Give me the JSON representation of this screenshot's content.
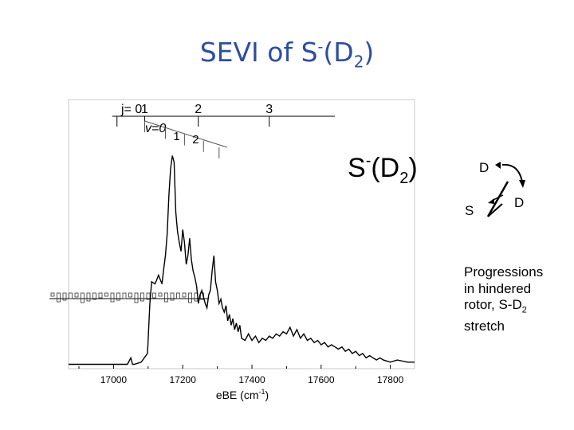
{
  "slide": {
    "title_main": "SEVI of S",
    "title_sup": "-",
    "title_paren_open": "(D",
    "title_sub": "2",
    "title_paren_close": ")"
  },
  "chart_data": {
    "type": "line",
    "title": "",
    "xlabel": "eBE (cm⁻¹)",
    "ylabel": "",
    "xlim": [
      16870,
      17870
    ],
    "ylim": [
      0,
      1.0
    ],
    "x_ticks": [
      17000,
      17200,
      17400,
      17600,
      17800
    ],
    "inset_label": "S⁻(D₂)",
    "series": [
      {
        "x": [
          16870,
          16950,
          17000,
          17040,
          17050,
          17055,
          17060,
          17080,
          17098,
          17105,
          17110,
          17120,
          17125,
          17130,
          17140,
          17145,
          17150,
          17155,
          17160,
          17165,
          17170,
          17175,
          17180,
          17185,
          17190,
          17195,
          17200,
          17205,
          17210,
          17215,
          17220,
          17225,
          17230,
          17235,
          17240,
          17245,
          17250,
          17255,
          17260,
          17265,
          17270,
          17275,
          17280,
          17285,
          17290,
          17295,
          17300,
          17305,
          17310,
          17315,
          17320,
          17325,
          17330,
          17335,
          17340,
          17345,
          17350,
          17355,
          17360,
          17365,
          17370,
          17380,
          17390,
          17400,
          17410,
          17420,
          17430,
          17440,
          17450,
          17460,
          17470,
          17480,
          17490,
          17500,
          17510,
          17520,
          17530,
          17540,
          17550,
          17560,
          17570,
          17580,
          17590,
          17600,
          17610,
          17620,
          17630,
          17640,
          17650,
          17660,
          17670,
          17680,
          17690,
          17700,
          17710,
          17720,
          17730,
          17740,
          17750,
          17760,
          17770,
          17780,
          17800,
          17820,
          17850,
          17870
        ],
        "y": [
          0.02,
          0.02,
          0.02,
          0.02,
          0.05,
          0.02,
          0.02,
          0.03,
          0.07,
          0.3,
          0.4,
          0.39,
          0.41,
          0.43,
          0.39,
          0.46,
          0.52,
          0.62,
          0.8,
          0.92,
          0.98,
          0.95,
          0.72,
          0.63,
          0.58,
          0.54,
          0.64,
          0.58,
          0.48,
          0.52,
          0.6,
          0.5,
          0.45,
          0.42,
          0.38,
          0.3,
          0.34,
          0.36,
          0.33,
          0.3,
          0.28,
          0.34,
          0.36,
          0.45,
          0.52,
          0.4,
          0.36,
          0.3,
          0.32,
          0.28,
          0.26,
          0.29,
          0.22,
          0.25,
          0.2,
          0.23,
          0.18,
          0.21,
          0.17,
          0.2,
          0.14,
          0.13,
          0.16,
          0.13,
          0.15,
          0.12,
          0.14,
          0.13,
          0.15,
          0.14,
          0.16,
          0.15,
          0.17,
          0.16,
          0.19,
          0.15,
          0.18,
          0.14,
          0.16,
          0.13,
          0.14,
          0.12,
          0.13,
          0.11,
          0.12,
          0.1,
          0.11,
          0.1,
          0.09,
          0.1,
          0.08,
          0.09,
          0.07,
          0.08,
          0.06,
          0.07,
          0.05,
          0.06,
          0.05,
          0.04,
          0.05,
          0.04,
          0.03,
          0.04,
          0.03,
          0.03
        ]
      }
    ],
    "progression_j": {
      "label": "j= 0",
      "labels": [
        "1",
        "2",
        "3"
      ],
      "positions": [
        17010,
        17090,
        17245,
        17450
      ]
    },
    "progression_v": {
      "label": "v=0",
      "labels": [
        "1",
        "2"
      ],
      "positions": [
        17090,
        17150,
        17205,
        17260,
        17305
      ]
    },
    "line_color": "#000000"
  },
  "molecule": {
    "atom_top": "D",
    "atom_left": "S",
    "atom_right": "D"
  },
  "annotation": {
    "line1": "Progressions",
    "line2": "in hindered",
    "line3": "rotor, S-D",
    "line3_sub": "2",
    "line4": "stretch"
  }
}
